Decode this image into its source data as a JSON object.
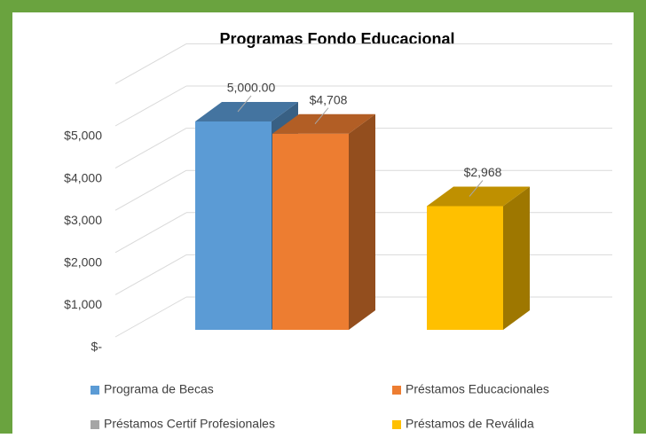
{
  "chart_data": {
    "type": "bar3d",
    "title": "Programas Fondo Educacional",
    "categories": [
      null
    ],
    "series": [
      {
        "name": "Programa de Becas",
        "color": "#5b9bd5",
        "values": [
          5000
        ],
        "value_labels": [
          "5,000.00"
        ]
      },
      {
        "name": "Préstamos Educacionales",
        "color": "#ed7d31",
        "values": [
          4708
        ],
        "value_labels": [
          "$4,708"
        ]
      },
      {
        "name": "Préstamos Certif Profesionales",
        "color": "#a5a5a5",
        "values": [
          null
        ],
        "value_labels": [
          null
        ]
      },
      {
        "name": "Préstamos de Reválida",
        "color": "#ffc000",
        "values": [
          2968
        ],
        "value_labels": [
          "$2,968"
        ]
      }
    ],
    "ylim": [
      0,
      6000
    ],
    "yticks": [
      {
        "value": 0,
        "label": "$-"
      },
      {
        "value": 1000,
        "label": "$1,000"
      },
      {
        "value": 2000,
        "label": "$2,000"
      },
      {
        "value": 3000,
        "label": "$3,000"
      },
      {
        "value": 4000,
        "label": "$4,000"
      },
      {
        "value": 5000,
        "label": "$5,000"
      }
    ],
    "grid": true,
    "legend": "bottom"
  }
}
